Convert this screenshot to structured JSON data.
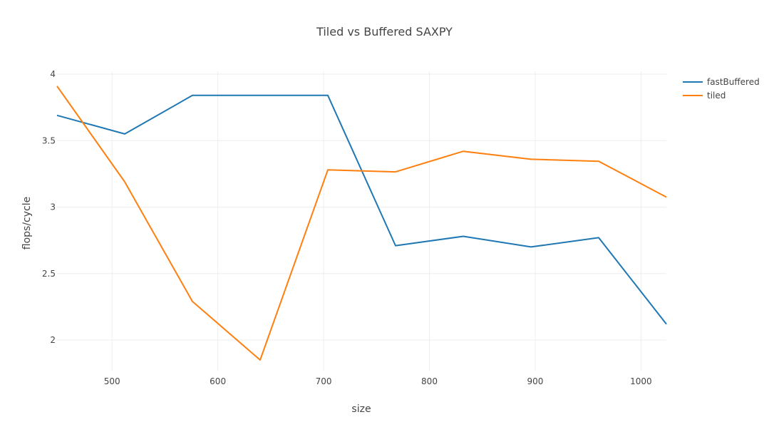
{
  "chart_data": {
    "type": "line",
    "title": "Tiled vs Buffered SAXPY",
    "xlabel": "size",
    "ylabel": "flops/cycle",
    "xlim": [
      448,
      1024
    ],
    "ylim": [
      1.85,
      4.0
    ],
    "x_ticks": [
      500,
      600,
      700,
      800,
      900,
      1000
    ],
    "y_ticks": [
      2,
      2.5,
      3,
      3.5,
      4
    ],
    "x_tick_labels": [
      "500",
      "600",
      "700",
      "800",
      "900",
      "1000"
    ],
    "y_tick_labels": [
      "2",
      "2.5",
      "3",
      "3.5",
      "4"
    ],
    "grid": true,
    "legend_position": "top-right",
    "x": [
      448,
      512,
      576,
      640,
      704,
      768,
      832,
      896,
      960,
      1024
    ],
    "series": [
      {
        "name": "fastBuffered",
        "color": "#1f77b4",
        "values": [
          3.69,
          3.55,
          3.84,
          3.84,
          3.84,
          2.71,
          2.78,
          2.7,
          2.77,
          2.12
        ]
      },
      {
        "name": "tiled",
        "color": "#ff7f0e",
        "values": [
          3.91,
          3.19,
          2.29,
          1.85,
          3.28,
          3.265,
          3.42,
          3.36,
          3.345,
          3.075
        ]
      }
    ]
  }
}
